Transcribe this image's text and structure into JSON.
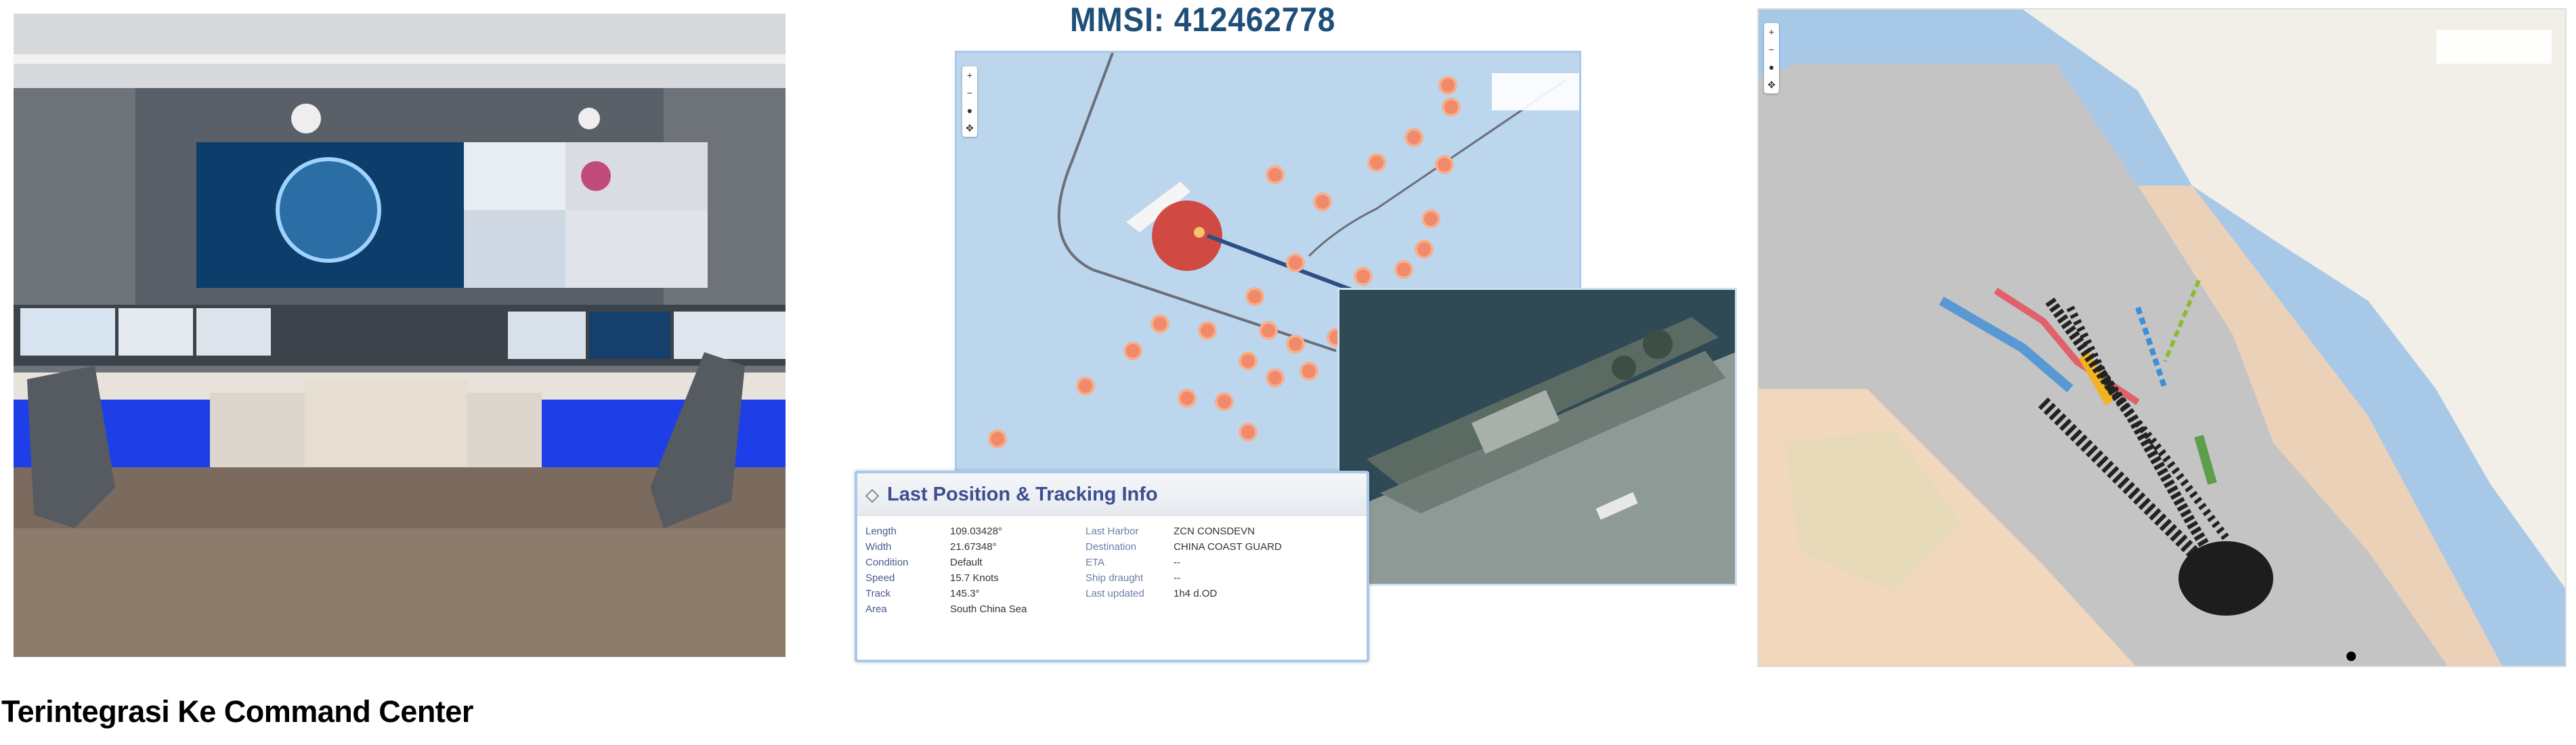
{
  "caption": "Terintegrasi Ke Command Center",
  "vessel_tracking": {
    "mmsi_title": "MMSI: 412462778",
    "info_panel": {
      "title": "Last Position & Tracking Info",
      "rows": [
        {
          "label": "Length",
          "value": "109.03428°",
          "label2": "Last Harbor",
          "value2": "ZCN CONSDEVN"
        },
        {
          "label": "Width",
          "value": "21.67348°",
          "label2": "Destination",
          "value2": "CHINA COAST GUARD"
        },
        {
          "label": "Condition",
          "value": "Default",
          "label2": "ETA",
          "value2": "--"
        },
        {
          "label": "Speed",
          "value": "15.7 Knots",
          "label2": "Ship draught",
          "value2": "--"
        },
        {
          "label": "Track",
          "value": "145.3°",
          "label2": "Last updated",
          "value2": "1h4 d.OD"
        },
        {
          "label": "Area",
          "value": "South China Sea",
          "label2": "",
          "value2": ""
        }
      ]
    }
  },
  "colors": {
    "title_blue": "#1f4e79",
    "panel_border": "#a9c8ea",
    "ping_red": "#e0453a",
    "ping_orange": "#f4a07a",
    "room_led_blue": "#2a4cff"
  },
  "icons": [
    "zoom-in-icon",
    "zoom-out-icon",
    "layers-icon",
    "diamond-icon",
    "info-icon"
  ]
}
